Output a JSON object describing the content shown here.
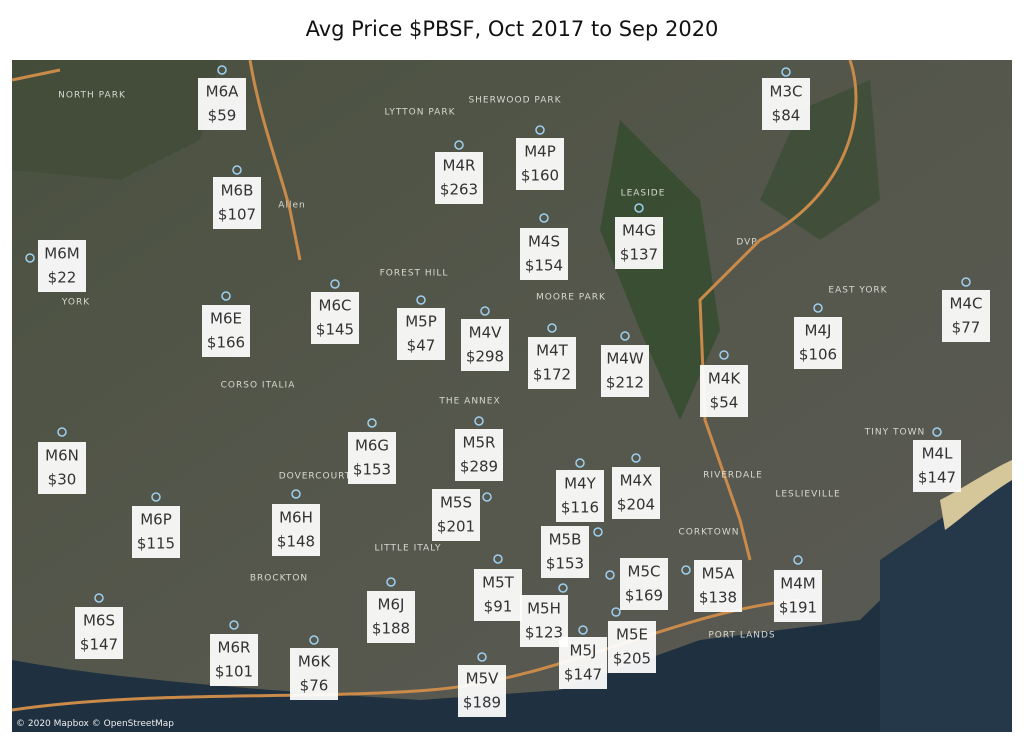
{
  "title": "Avg Price $PBSF, Oct 2017 to Sep 2020",
  "regions": [
    {
      "code": "M6A",
      "price": "$59"
    },
    {
      "code": "M3C",
      "price": "$84"
    },
    {
      "code": "M4R",
      "price": "$263"
    },
    {
      "code": "M4P",
      "price": "$160"
    },
    {
      "code": "M6B",
      "price": "$107"
    },
    {
      "code": "M6M",
      "price": "$22"
    },
    {
      "code": "M4S",
      "price": "$154"
    },
    {
      "code": "M4G",
      "price": "$137"
    },
    {
      "code": "M6E",
      "price": "$166"
    },
    {
      "code": "M6C",
      "price": "$145"
    },
    {
      "code": "M5P",
      "price": "$47"
    },
    {
      "code": "M4V",
      "price": "$298"
    },
    {
      "code": "M4T",
      "price": "$172"
    },
    {
      "code": "M4W",
      "price": "$212"
    },
    {
      "code": "M4C",
      "price": "$77"
    },
    {
      "code": "M4J",
      "price": "$106"
    },
    {
      "code": "M4K",
      "price": "$54"
    },
    {
      "code": "M6N",
      "price": "$30"
    },
    {
      "code": "M6G",
      "price": "$153"
    },
    {
      "code": "M5R",
      "price": "$289"
    },
    {
      "code": "M4L",
      "price": "$147"
    },
    {
      "code": "M4Y",
      "price": "$116"
    },
    {
      "code": "M4X",
      "price": "$204"
    },
    {
      "code": "M5S",
      "price": "$201"
    },
    {
      "code": "M6P",
      "price": "$115"
    },
    {
      "code": "M6H",
      "price": "$148"
    },
    {
      "code": "M5B",
      "price": "$153"
    },
    {
      "code": "M5C",
      "price": "$169"
    },
    {
      "code": "M5A",
      "price": "$138"
    },
    {
      "code": "M4M",
      "price": "$191"
    },
    {
      "code": "M5T",
      "price": "$91"
    },
    {
      "code": "M6J",
      "price": "$188"
    },
    {
      "code": "M6S",
      "price": "$147"
    },
    {
      "code": "M5H",
      "price": "$123"
    },
    {
      "code": "M5E",
      "price": "$205"
    },
    {
      "code": "M5J",
      "price": "$147"
    },
    {
      "code": "M6R",
      "price": "$101"
    },
    {
      "code": "M6K",
      "price": "$76"
    },
    {
      "code": "M5V",
      "price": "$189"
    }
  ],
  "place_names": [
    "NORTH PARK",
    "LYTTON PARK",
    "SHERWOOD PARK",
    "LEASIDE",
    "FOREST HILL",
    "MOORE PARK",
    "CORSO ITALIA",
    "THE ANNEX",
    "DOVERCOURT",
    "LITTLE ITALY",
    "BROCKTON",
    "RIVERDALE",
    "LESLIEVILLE",
    "CORKTOWN",
    "EAST YORK",
    "TINY TOWN",
    "PORT LANDS",
    "YORK",
    "Allen",
    "DVP"
  ],
  "attribution": "© 2020 Mapbox © OpenStreetMap"
}
